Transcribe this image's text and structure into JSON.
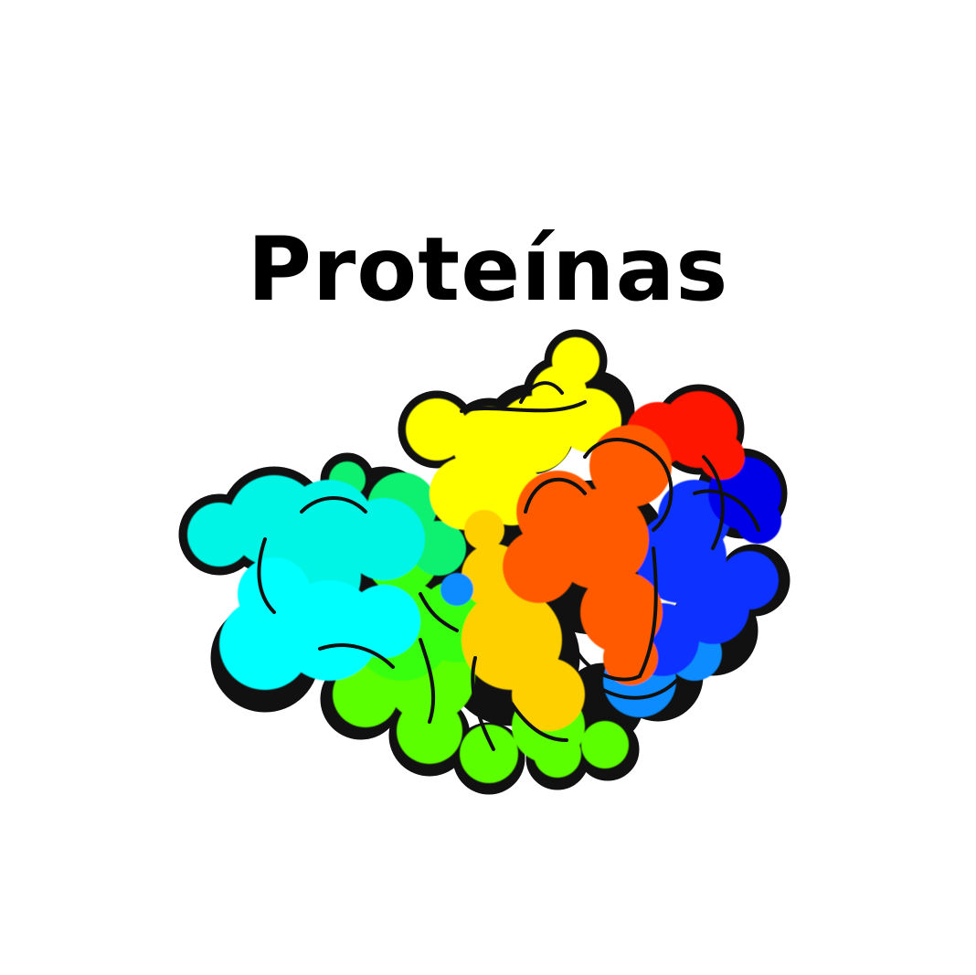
{
  "title": "Proteínas",
  "figure": {
    "icon": "protein-surface-illustration",
    "colors": {
      "cyan": "#00FFFF",
      "aqua_green": "#00F0C8",
      "spring_green": "#00F060",
      "green": "#40FF00",
      "lime": "#70FF00",
      "yellow": "#FFFF00",
      "gold": "#FFC800",
      "orange": "#FF5A00",
      "red": "#FF1200",
      "blue": "#0010FF",
      "deep_blue": "#0000E6",
      "azure": "#0A8CFF",
      "outline": "#111111"
    }
  }
}
